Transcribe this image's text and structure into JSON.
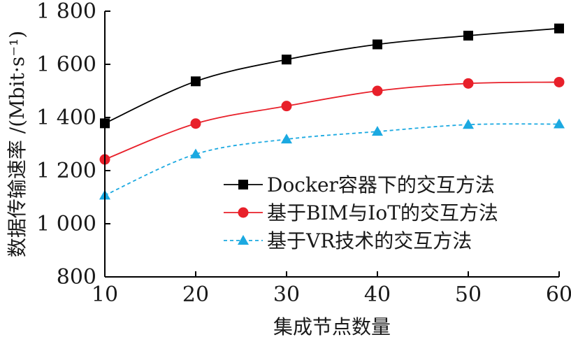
{
  "chart_data": {
    "type": "line",
    "xlabel": "集成节点数量",
    "ylabel": "数据传输速率 /(Mbit·s⁻¹)",
    "x": [
      10,
      20,
      30,
      40,
      50,
      60
    ],
    "xticks": [
      "10",
      "20",
      "30",
      "40",
      "50",
      "60"
    ],
    "yticks": [
      "800",
      "1 000",
      "1 200",
      "1 400",
      "1 600",
      "1 800"
    ],
    "xlim": [
      10,
      60
    ],
    "ylim": [
      800,
      1800
    ],
    "grid": false,
    "legend_position": "lower-right",
    "series": [
      {
        "name": "Docker容器下的交互方法",
        "values": [
          1378,
          1536,
          1618,
          1675,
          1708,
          1735
        ],
        "color": "#000000",
        "marker": "square",
        "line": "solid"
      },
      {
        "name": "基于BIM与IoT的交互方法",
        "values": [
          1242,
          1377,
          1443,
          1500,
          1528,
          1533
        ],
        "color": "#e8202a",
        "marker": "circle",
        "line": "solid"
      },
      {
        "name": "基于VR技术的交互方法",
        "values": [
          1107,
          1262,
          1318,
          1347,
          1373,
          1375
        ],
        "color": "#1ba9e1",
        "marker": "triangle",
        "line": "dashed"
      }
    ]
  }
}
